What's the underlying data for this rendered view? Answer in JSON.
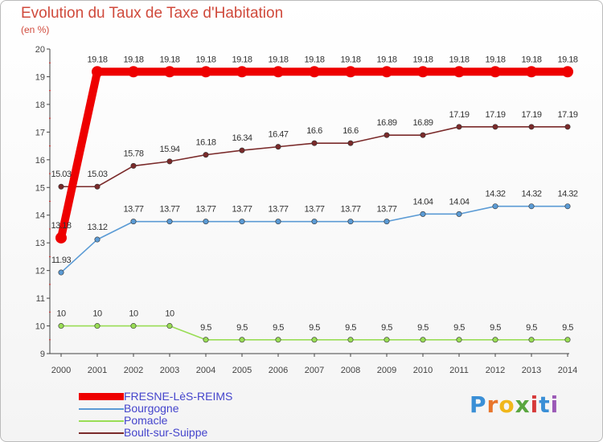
{
  "title": "Evolution du Taux de Taxe d'Habitation",
  "subtitle": "(en %)",
  "logo": {
    "letters": [
      "P",
      "r",
      "o",
      "x",
      "i",
      "t",
      "i"
    ],
    "colors": [
      "#3a8fd6",
      "#e8752b",
      "#f0b71b",
      "#5aa63f",
      "#d63a3a",
      "#3a8fd6",
      "#9b59b6"
    ]
  },
  "chart_data": {
    "type": "line",
    "title": "Evolution du Taux de Taxe d'Habitation",
    "ylabel": "(en %)",
    "xlabel": "",
    "ylim": [
      9,
      20
    ],
    "yticks": [
      "9",
      "10",
      "11",
      "12",
      "13",
      "14",
      "15",
      "16",
      "17",
      "18",
      "19",
      "20"
    ],
    "x": [
      "2000",
      "2001",
      "2002",
      "2003",
      "2004",
      "2005",
      "2006",
      "2007",
      "2008",
      "2009",
      "2010",
      "2011",
      "2012",
      "2013",
      "2014"
    ],
    "grid": false,
    "legend_position": "bottom-left",
    "series": [
      {
        "name": "FRESNE-LèS-REIMS",
        "color": "#ee0000",
        "emphasis": "thick",
        "values": [
          13.18,
          19.18,
          19.18,
          19.18,
          19.18,
          19.18,
          19.18,
          19.18,
          19.18,
          19.18,
          19.18,
          19.18,
          19.18,
          19.18,
          19.18
        ],
        "labels": [
          "13.18",
          "19.18",
          "19.18",
          "19.18",
          "19.18",
          "19.18",
          "19.18",
          "19.18",
          "19.18",
          "19.18",
          "19.18",
          "19.18",
          "19.18",
          "19.18",
          "19.18"
        ]
      },
      {
        "name": "Bourgogne",
        "color": "#5b9bd5",
        "emphasis": "thin",
        "values": [
          11.93,
          13.12,
          13.77,
          13.77,
          13.77,
          13.77,
          13.77,
          13.77,
          13.77,
          13.77,
          14.04,
          14.04,
          14.32,
          14.32,
          14.32
        ],
        "labels": [
          "11.93",
          "13.12",
          "13.77",
          "13.77",
          "13.77",
          "13.77",
          "13.77",
          "13.77",
          "13.77",
          "13.77",
          "14.04",
          "14.04",
          "14.32",
          "14.32",
          "14.32"
        ]
      },
      {
        "name": "Pomacle",
        "color": "#99dd55",
        "emphasis": "thin",
        "values": [
          10,
          10,
          10,
          10,
          9.5,
          9.5,
          9.5,
          9.5,
          9.5,
          9.5,
          9.5,
          9.5,
          9.5,
          9.5,
          9.5
        ],
        "labels": [
          "10",
          "10",
          "10",
          "10",
          "9.5",
          "9.5",
          "9.5",
          "9.5",
          "9.5",
          "9.5",
          "9.5",
          "9.5",
          "9.5",
          "9.5",
          "9.5"
        ]
      },
      {
        "name": "Boult-sur-Suippe",
        "color": "#7a2a2a",
        "emphasis": "thin",
        "values": [
          15.03,
          15.03,
          15.78,
          15.94,
          16.18,
          16.34,
          16.47,
          16.6,
          16.6,
          16.89,
          16.89,
          17.19,
          17.19,
          17.19,
          17.19
        ],
        "labels": [
          "15.03",
          "15.03",
          "15.78",
          "15.94",
          "16.18",
          "16.34",
          "16.47",
          "16.6",
          "16.6",
          "16.89",
          "16.89",
          "17.19",
          "17.19",
          "17.19",
          "17.19"
        ]
      }
    ]
  }
}
